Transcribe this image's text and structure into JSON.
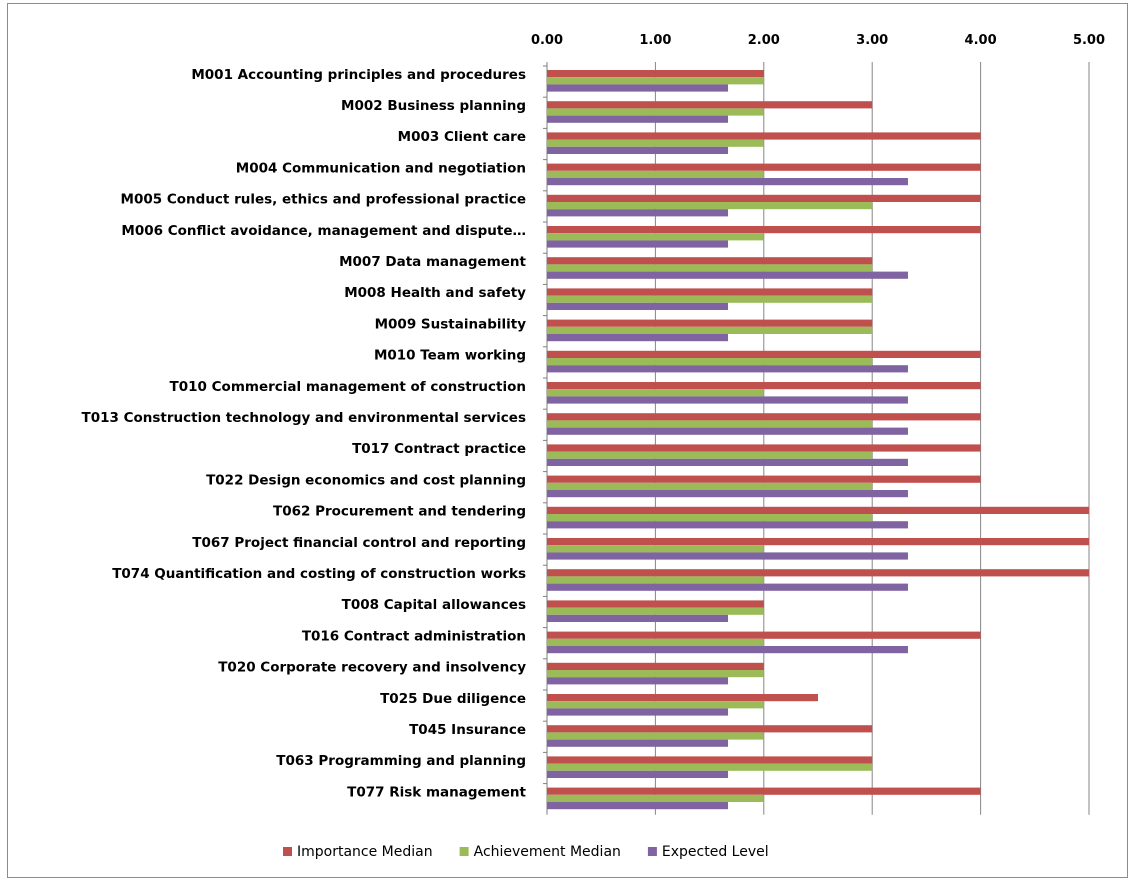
{
  "chart_data": {
    "type": "bar",
    "orientation": "horizontal",
    "categories": [
      "M001 Accounting principles and procedures",
      "M002 Business planning",
      "M003 Client care",
      "M004 Communication and negotiation",
      "M005 Conduct rules, ethics and professional practice",
      "M006 Conflict avoidance, management and dispute…",
      "M007 Data management",
      "M008 Health and safety",
      "M009 Sustainability",
      "M010 Team working",
      "T010 Commercial management of construction",
      "T013 Construction technology and environmental services",
      "T017 Contract practice",
      "T022 Design economics and cost planning",
      "T062 Procurement and tendering",
      "T067 Project financial control and reporting",
      "T074 Quantification and costing of construction works",
      "T008 Capital allowances",
      "T016 Contract administration",
      "T020 Corporate recovery and insolvency",
      "T025 Due diligence",
      "T045 Insurance",
      "T063 Programming and planning",
      "T077 Risk management"
    ],
    "series": [
      {
        "name": "Importance Median",
        "color": "#c0504d",
        "values": [
          2,
          3,
          4,
          4,
          4,
          4,
          3,
          3,
          3,
          4,
          4,
          4,
          4,
          4,
          5,
          5,
          5,
          2,
          4,
          2,
          2.5,
          3,
          3,
          4
        ]
      },
      {
        "name": "Achievement Median",
        "color": "#9bbb59",
        "values": [
          2,
          2,
          2,
          2,
          3,
          2,
          3,
          3,
          3,
          3,
          2,
          3,
          3,
          3,
          3,
          2,
          2,
          2,
          2,
          2,
          2,
          2,
          3,
          2
        ]
      },
      {
        "name": "Expected Level",
        "color": "#8064a2",
        "values": [
          1.67,
          1.67,
          1.67,
          3.33,
          1.67,
          1.67,
          3.33,
          1.67,
          1.67,
          3.33,
          3.33,
          3.33,
          3.33,
          3.33,
          3.33,
          3.33,
          3.33,
          1.67,
          3.33,
          1.67,
          1.67,
          1.67,
          1.67,
          1.67
        ]
      }
    ],
    "xlim": [
      0,
      5
    ],
    "xticks": [
      "0.00",
      "1.00",
      "2.00",
      "3.00",
      "4.00",
      "5.00"
    ],
    "grid": "vertical",
    "axis_position": "top",
    "legend_position": "bottom"
  }
}
